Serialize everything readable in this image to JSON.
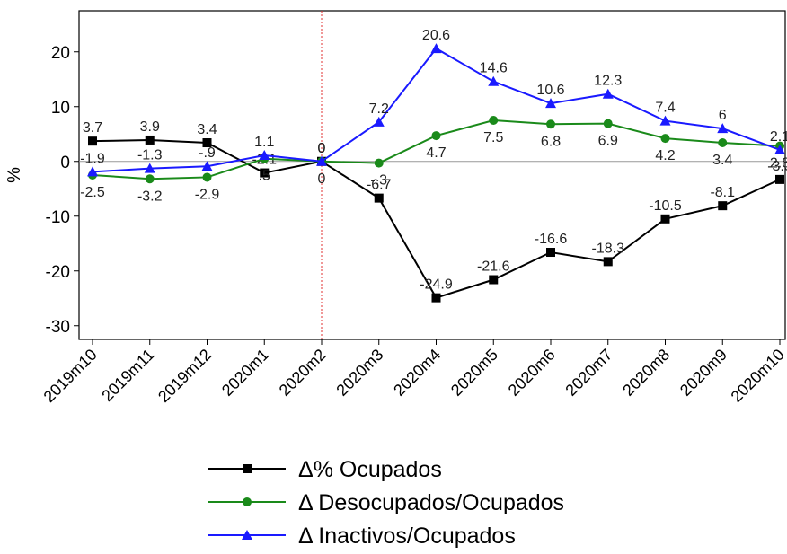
{
  "chart_data": {
    "type": "line",
    "y_label": "%",
    "categories": [
      "2019m10",
      "2019m11",
      "2019m12",
      "2020m1",
      "2020m2",
      "2020m3",
      "2020m4",
      "2020m5",
      "2020m6",
      "2020m7",
      "2020m8",
      "2020m9",
      "2020m10"
    ],
    "series": [
      {
        "name": "Δ% Ocupados",
        "color": "#000000",
        "marker": "square",
        "values": [
          3.7,
          3.9,
          3.4,
          -2.1,
          0,
          -6.7,
          -24.9,
          -21.6,
          -16.6,
          -18.3,
          -10.5,
          -8.1,
          -3.3
        ],
        "value_labels": [
          "3.7",
          "3.9",
          "3.4",
          "-2.1",
          "0",
          "-6.7",
          "-24.9",
          "-21.6",
          "-16.6",
          "-18.3",
          "-10.5",
          "-8.1",
          "-3.3"
        ]
      },
      {
        "name": "Δ Desocupados/Ocupados",
        "color": "#1a8a1a",
        "marker": "circle",
        "values": [
          -2.5,
          -3.2,
          -2.9,
          0.5,
          0,
          -0.3,
          4.7,
          7.5,
          6.8,
          6.9,
          4.2,
          3.4,
          2.8
        ],
        "value_labels": [
          "-2.5",
          "-3.2",
          "-2.9",
          ".5",
          "0",
          "-.3",
          "4.7",
          "7.5",
          "6.8",
          "6.9",
          "4.2",
          "3.4",
          "2.8"
        ]
      },
      {
        "name": "Δ Inactivos/Ocupados",
        "color": "#1a1aff",
        "marker": "triangle",
        "values": [
          -1.9,
          -1.3,
          -0.9,
          1.1,
          0,
          7.2,
          20.6,
          14.6,
          10.6,
          12.3,
          7.4,
          6,
          2.1
        ],
        "value_labels": [
          "-1.9",
          "-1.3",
          "-.9",
          "1.1",
          "0",
          "7.2",
          "20.6",
          "14.6",
          "10.6",
          "12.3",
          "7.4",
          "6",
          "2.1"
        ]
      }
    ],
    "ylim": [
      -32.5,
      27.5
    ],
    "yticks": [
      -30,
      -20,
      -10,
      0,
      10,
      20
    ],
    "yline": 0,
    "vline": "2020m2",
    "vline_color": "#e03030",
    "legend": "bottom"
  }
}
